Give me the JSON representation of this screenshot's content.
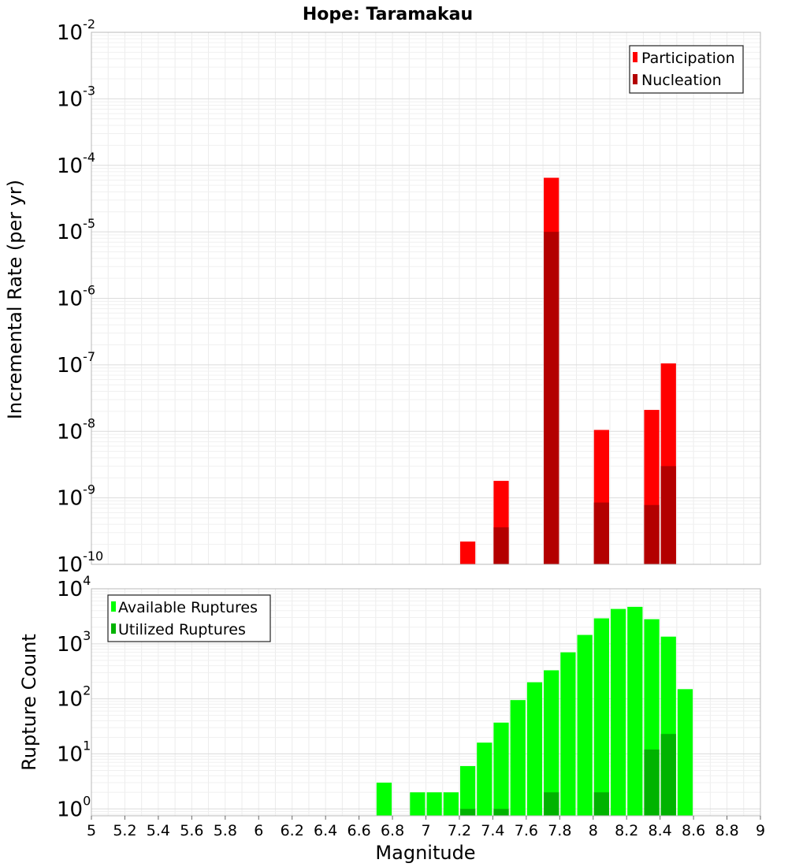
{
  "chart_data": [
    {
      "type": "bar",
      "title": "Hope: Taramakau",
      "ylabel": "Incremental Rate (per yr)",
      "xlabel": "",
      "y_scale": "log",
      "ylim": [
        1e-10,
        0.01
      ],
      "xlim": [
        5,
        9
      ],
      "y_ticks": [
        {
          "base": "10",
          "exp": "-10"
        },
        {
          "base": "10",
          "exp": "-9"
        },
        {
          "base": "10",
          "exp": "-8"
        },
        {
          "base": "10",
          "exp": "-7"
        },
        {
          "base": "10",
          "exp": "-6"
        },
        {
          "base": "10",
          "exp": "-5"
        },
        {
          "base": "10",
          "exp": "-4"
        },
        {
          "base": "10",
          "exp": "-3"
        },
        {
          "base": "10",
          "exp": "-2"
        }
      ],
      "grid": true,
      "legend_position": "top-right",
      "series": [
        {
          "name": "Participation",
          "color": "#ff0000",
          "points": [
            {
              "x": 7.25,
              "y": 2.2e-10
            },
            {
              "x": 7.45,
              "y": 1.8e-09
            },
            {
              "x": 7.75,
              "y": 6.5e-05
            },
            {
              "x": 8.05,
              "y": 1.05e-08
            },
            {
              "x": 8.35,
              "y": 2.1e-08
            },
            {
              "x": 8.45,
              "y": 1.05e-07
            }
          ]
        },
        {
          "name": "Nucleation",
          "color": "#b30000",
          "points": [
            {
              "x": 7.45,
              "y": 3.6e-10
            },
            {
              "x": 7.75,
              "y": 1e-05
            },
            {
              "x": 8.05,
              "y": 8.5e-10
            },
            {
              "x": 8.35,
              "y": 7.8e-10
            },
            {
              "x": 8.45,
              "y": 3e-09
            }
          ]
        }
      ]
    },
    {
      "type": "bar",
      "title": "",
      "ylabel": "Rupture Count",
      "xlabel": "Magnitude",
      "y_scale": "log",
      "ylim": [
        0.75,
        10000
      ],
      "xlim": [
        5,
        9
      ],
      "y_ticks": [
        {
          "base": "10",
          "exp": "0",
          "value": 1
        },
        {
          "base": "10",
          "exp": "1",
          "value": 10
        },
        {
          "base": "10",
          "exp": "2",
          "value": 100
        },
        {
          "base": "10",
          "exp": "3",
          "value": 1000
        },
        {
          "base": "10",
          "exp": "4",
          "value": 10000
        }
      ],
      "x_ticks": [
        "5",
        "5.2",
        "5.4",
        "5.6",
        "5.8",
        "6",
        "6.2",
        "6.4",
        "6.6",
        "6.8",
        "7",
        "7.2",
        "7.4",
        "7.6",
        "7.8",
        "8",
        "8.2",
        "8.4",
        "8.6",
        "8.8",
        "9"
      ],
      "grid": true,
      "legend_position": "top-left",
      "series": [
        {
          "name": "Available Ruptures",
          "color": "#00ff00",
          "points": [
            {
              "x": 6.75,
              "y": 3
            },
            {
              "x": 6.95,
              "y": 2
            },
            {
              "x": 7.05,
              "y": 2
            },
            {
              "x": 7.15,
              "y": 2
            },
            {
              "x": 7.25,
              "y": 6
            },
            {
              "x": 7.35,
              "y": 16
            },
            {
              "x": 7.45,
              "y": 37
            },
            {
              "x": 7.55,
              "y": 95
            },
            {
              "x": 7.65,
              "y": 200
            },
            {
              "x": 7.75,
              "y": 330
            },
            {
              "x": 7.85,
              "y": 700
            },
            {
              "x": 7.95,
              "y": 1450
            },
            {
              "x": 8.05,
              "y": 2900
            },
            {
              "x": 8.15,
              "y": 4300
            },
            {
              "x": 8.25,
              "y": 4700
            },
            {
              "x": 8.35,
              "y": 2800
            },
            {
              "x": 8.45,
              "y": 1350
            },
            {
              "x": 8.55,
              "y": 150
            }
          ]
        },
        {
          "name": "Utilized Ruptures",
          "color": "#00b300",
          "points": [
            {
              "x": 7.25,
              "y": 1
            },
            {
              "x": 7.45,
              "y": 1
            },
            {
              "x": 7.75,
              "y": 2
            },
            {
              "x": 8.05,
              "y": 2
            },
            {
              "x": 8.35,
              "y": 12
            },
            {
              "x": 8.45,
              "y": 23
            }
          ]
        }
      ]
    }
  ]
}
